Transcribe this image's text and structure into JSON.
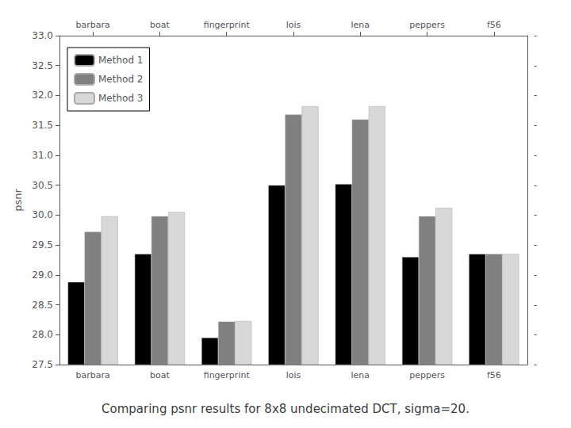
{
  "chart_data": {
    "type": "bar",
    "title": "Comparing psnr results for 8x8 undecimated DCT, sigma=20.",
    "ylabel": "psnr",
    "categories": [
      "barbara",
      "boat",
      "fingerprint",
      "lois",
      "lena",
      "peppers",
      "f56"
    ],
    "series": [
      {
        "name": "Method 1",
        "color": "#000000",
        "values": [
          28.88,
          29.35,
          27.95,
          30.5,
          30.52,
          29.3,
          29.35
        ]
      },
      {
        "name": "Method 2",
        "color": "#808080",
        "values": [
          29.72,
          29.98,
          28.22,
          31.68,
          31.6,
          29.98,
          29.35
        ]
      },
      {
        "name": "Method 3",
        "color": "#d8d8d8",
        "values": [
          29.98,
          30.05,
          28.23,
          31.82,
          31.82,
          30.12,
          29.35
        ]
      }
    ],
    "ylim": [
      27.5,
      33.0
    ],
    "yticks": [
      27.5,
      {
        "value": 28,
        "label": "28.0"
      },
      28.5,
      {
        "value": 29,
        "label": "29.0"
      },
      29.5,
      {
        "value": 30,
        "label": "30.0"
      },
      30.5,
      {
        "value": 31,
        "label": "31.0"
      },
      31.5,
      {
        "value": 32,
        "label": "32.0"
      },
      32.5,
      {
        "value": 33,
        "label": "33.0"
      }
    ],
    "y2lim": [
      27.5,
      33.0
    ],
    "y2ticks": [
      {
        "value": 27.5,
        "label": "-"
      },
      {
        "value": 28,
        "label": "-"
      },
      {
        "value": 28.5,
        "label": "-"
      },
      {
        "value": 29,
        "label": "-"
      },
      {
        "value": 29.5,
        "label": "-"
      },
      {
        "value": 30,
        "label": "-"
      },
      {
        "value": 30.5,
        "label": "-"
      },
      {
        "value": 31,
        "label": "-"
      },
      {
        "value": 31.5,
        "label": "-"
      },
      {
        "value": 32,
        "label": "-"
      },
      {
        "value": 32.5,
        "label": "-"
      },
      {
        "value": 33,
        "label": "-"
      }
    ],
    "grid": false,
    "legend": "upper left"
  }
}
